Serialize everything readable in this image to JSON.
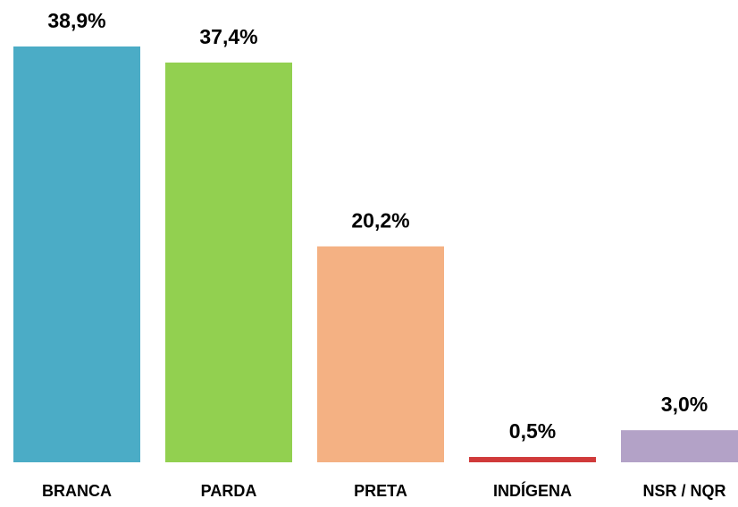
{
  "chart_data": {
    "type": "bar",
    "categories": [
      "BRANCA",
      "PARDA",
      "PRETA",
      "INDÍGENA",
      "NSR / NQR"
    ],
    "values": [
      38.9,
      37.4,
      20.2,
      0.5,
      3.0
    ],
    "value_labels": [
      "38,9%",
      "37,4%",
      "20,2%",
      "0,5%",
      "3,0%"
    ],
    "colors": [
      "#4bacc6",
      "#92d050",
      "#f4b183",
      "#d03a3a",
      "#b3a2c7"
    ]
  }
}
